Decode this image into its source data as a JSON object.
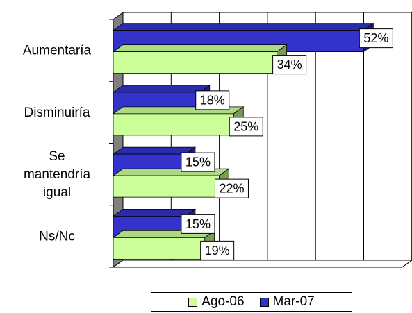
{
  "chart_data": {
    "type": "bar",
    "orientation": "horizontal",
    "categories": [
      "Aumentaría",
      "Disminuiría",
      "Se mantendría igual",
      "Ns/Nc"
    ],
    "category_label_lines": [
      [
        "Aumentaría"
      ],
      [
        "Disminuiría"
      ],
      [
        "Se",
        "mantendría",
        "igual"
      ],
      [
        "Ns/Nc"
      ]
    ],
    "series": [
      {
        "name": "Mar-07",
        "values": [
          52,
          18,
          15,
          15
        ],
        "labels": [
          "52%",
          "18%",
          "15%",
          "15%"
        ],
        "color": "#3333CC"
      },
      {
        "name": "Ago-06",
        "values": [
          34,
          25,
          22,
          19
        ],
        "labels": [
          "34%",
          "25%",
          "22%",
          "19%"
        ],
        "color": "#CCFF99"
      }
    ],
    "xlim": [
      0,
      60
    ],
    "grid": true,
    "legend_position": "bottom",
    "legend_order": [
      "Ago-06",
      "Mar-07"
    ]
  }
}
